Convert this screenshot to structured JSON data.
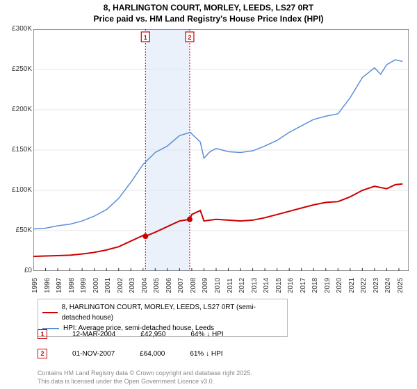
{
  "title_line1": "8, HARLINGTON COURT, MORLEY, LEEDS, LS27 0RT",
  "title_line2": "Price paid vs. HM Land Registry's House Price Index (HPI)",
  "chart": {
    "type": "line",
    "background_color": "#ffffff",
    "grid_color": "#e5e5e5",
    "axis_color": "#333333",
    "label_fontsize": 10,
    "title_fontsize": 12,
    "x_years": [
      1995,
      1996,
      1997,
      1998,
      1999,
      2000,
      2001,
      2002,
      2003,
      2004,
      2005,
      2006,
      2007,
      2008,
      2009,
      2010,
      2011,
      2012,
      2013,
      2014,
      2015,
      2016,
      2017,
      2018,
      2019,
      2020,
      2021,
      2022,
      2023,
      2024,
      2025
    ],
    "x_range": [
      1995,
      2025.8
    ],
    "y_range": [
      0,
      300000
    ],
    "y_ticks": [
      0,
      50000,
      100000,
      150000,
      200000,
      250000,
      300000
    ],
    "y_tick_labels": [
      "£0",
      "£50K",
      "£100K",
      "£150K",
      "£200K",
      "£250K",
      "£300K"
    ],
    "highlight_band": {
      "from": 2004.2,
      "to": 2007.83,
      "color": "#eaf1fb"
    },
    "vlines": [
      {
        "x": 2004.2,
        "color": "#cc0000",
        "label": "1"
      },
      {
        "x": 2007.83,
        "color": "#cc0000",
        "label": "2"
      }
    ],
    "series": [
      {
        "name": "price_paid",
        "label": "8, HARLINGTON COURT, MORLEY, LEEDS, LS27 0RT (semi-detached house)",
        "color": "#cc0000",
        "line_width": 2,
        "points": [
          [
            1995,
            18000
          ],
          [
            1996,
            18500
          ],
          [
            1997,
            19000
          ],
          [
            1998,
            19500
          ],
          [
            1999,
            21000
          ],
          [
            2000,
            23000
          ],
          [
            2001,
            26000
          ],
          [
            2002,
            30000
          ],
          [
            2003,
            37000
          ],
          [
            2004,
            44000
          ],
          [
            2004.2,
            42950
          ],
          [
            2005,
            48000
          ],
          [
            2006,
            55000
          ],
          [
            2007,
            62000
          ],
          [
            2007.83,
            64000
          ],
          [
            2008,
            70000
          ],
          [
            2008.7,
            75000
          ],
          [
            2009,
            62000
          ],
          [
            2010,
            64000
          ],
          [
            2011,
            63000
          ],
          [
            2012,
            62000
          ],
          [
            2013,
            63000
          ],
          [
            2014,
            66000
          ],
          [
            2015,
            70000
          ],
          [
            2016,
            74000
          ],
          [
            2017,
            78000
          ],
          [
            2018,
            82000
          ],
          [
            2019,
            85000
          ],
          [
            2020,
            86000
          ],
          [
            2021,
            92000
          ],
          [
            2022,
            100000
          ],
          [
            2023,
            105000
          ],
          [
            2024,
            102000
          ],
          [
            2024.7,
            107000
          ],
          [
            2025.3,
            108000
          ]
        ],
        "markers": [
          {
            "x": 2004.2,
            "y": 42950,
            "r": 4
          },
          {
            "x": 2007.83,
            "y": 64000,
            "r": 4
          }
        ]
      },
      {
        "name": "hpi",
        "label": "HPI: Average price, semi-detached house, Leeds",
        "color": "#5b8fd6",
        "line_width": 1.5,
        "points": [
          [
            1995,
            52000
          ],
          [
            1996,
            53000
          ],
          [
            1997,
            56000
          ],
          [
            1998,
            58000
          ],
          [
            1999,
            62000
          ],
          [
            2000,
            68000
          ],
          [
            2001,
            76000
          ],
          [
            2002,
            90000
          ],
          [
            2003,
            110000
          ],
          [
            2004,
            132000
          ],
          [
            2005,
            147000
          ],
          [
            2006,
            155000
          ],
          [
            2007,
            168000
          ],
          [
            2007.9,
            172000
          ],
          [
            2008,
            170000
          ],
          [
            2008.7,
            160000
          ],
          [
            2009,
            140000
          ],
          [
            2009.5,
            148000
          ],
          [
            2010,
            152000
          ],
          [
            2011,
            148000
          ],
          [
            2012,
            147000
          ],
          [
            2013,
            149000
          ],
          [
            2014,
            155000
          ],
          [
            2015,
            162000
          ],
          [
            2016,
            172000
          ],
          [
            2017,
            180000
          ],
          [
            2018,
            188000
          ],
          [
            2019,
            192000
          ],
          [
            2020,
            195000
          ],
          [
            2021,
            215000
          ],
          [
            2022,
            240000
          ],
          [
            2023,
            252000
          ],
          [
            2023.5,
            244000
          ],
          [
            2024,
            256000
          ],
          [
            2024.7,
            262000
          ],
          [
            2025.3,
            260000
          ]
        ]
      }
    ]
  },
  "legend": {
    "border_color": "#bbbbbb",
    "fontsize": 10
  },
  "sales": [
    {
      "num": "1",
      "date": "12-MAR-2004",
      "price": "£42,950",
      "pct": "64% ↓ HPI",
      "marker_color": "#cc0000"
    },
    {
      "num": "2",
      "date": "01-NOV-2007",
      "price": "£64,000",
      "pct": "61% ↓ HPI",
      "marker_color": "#cc0000"
    }
  ],
  "copyright_line1": "Contains HM Land Registry data © Crown copyright and database right 2025.",
  "copyright_line2": "This data is licensed under the Open Government Licence v3.0."
}
